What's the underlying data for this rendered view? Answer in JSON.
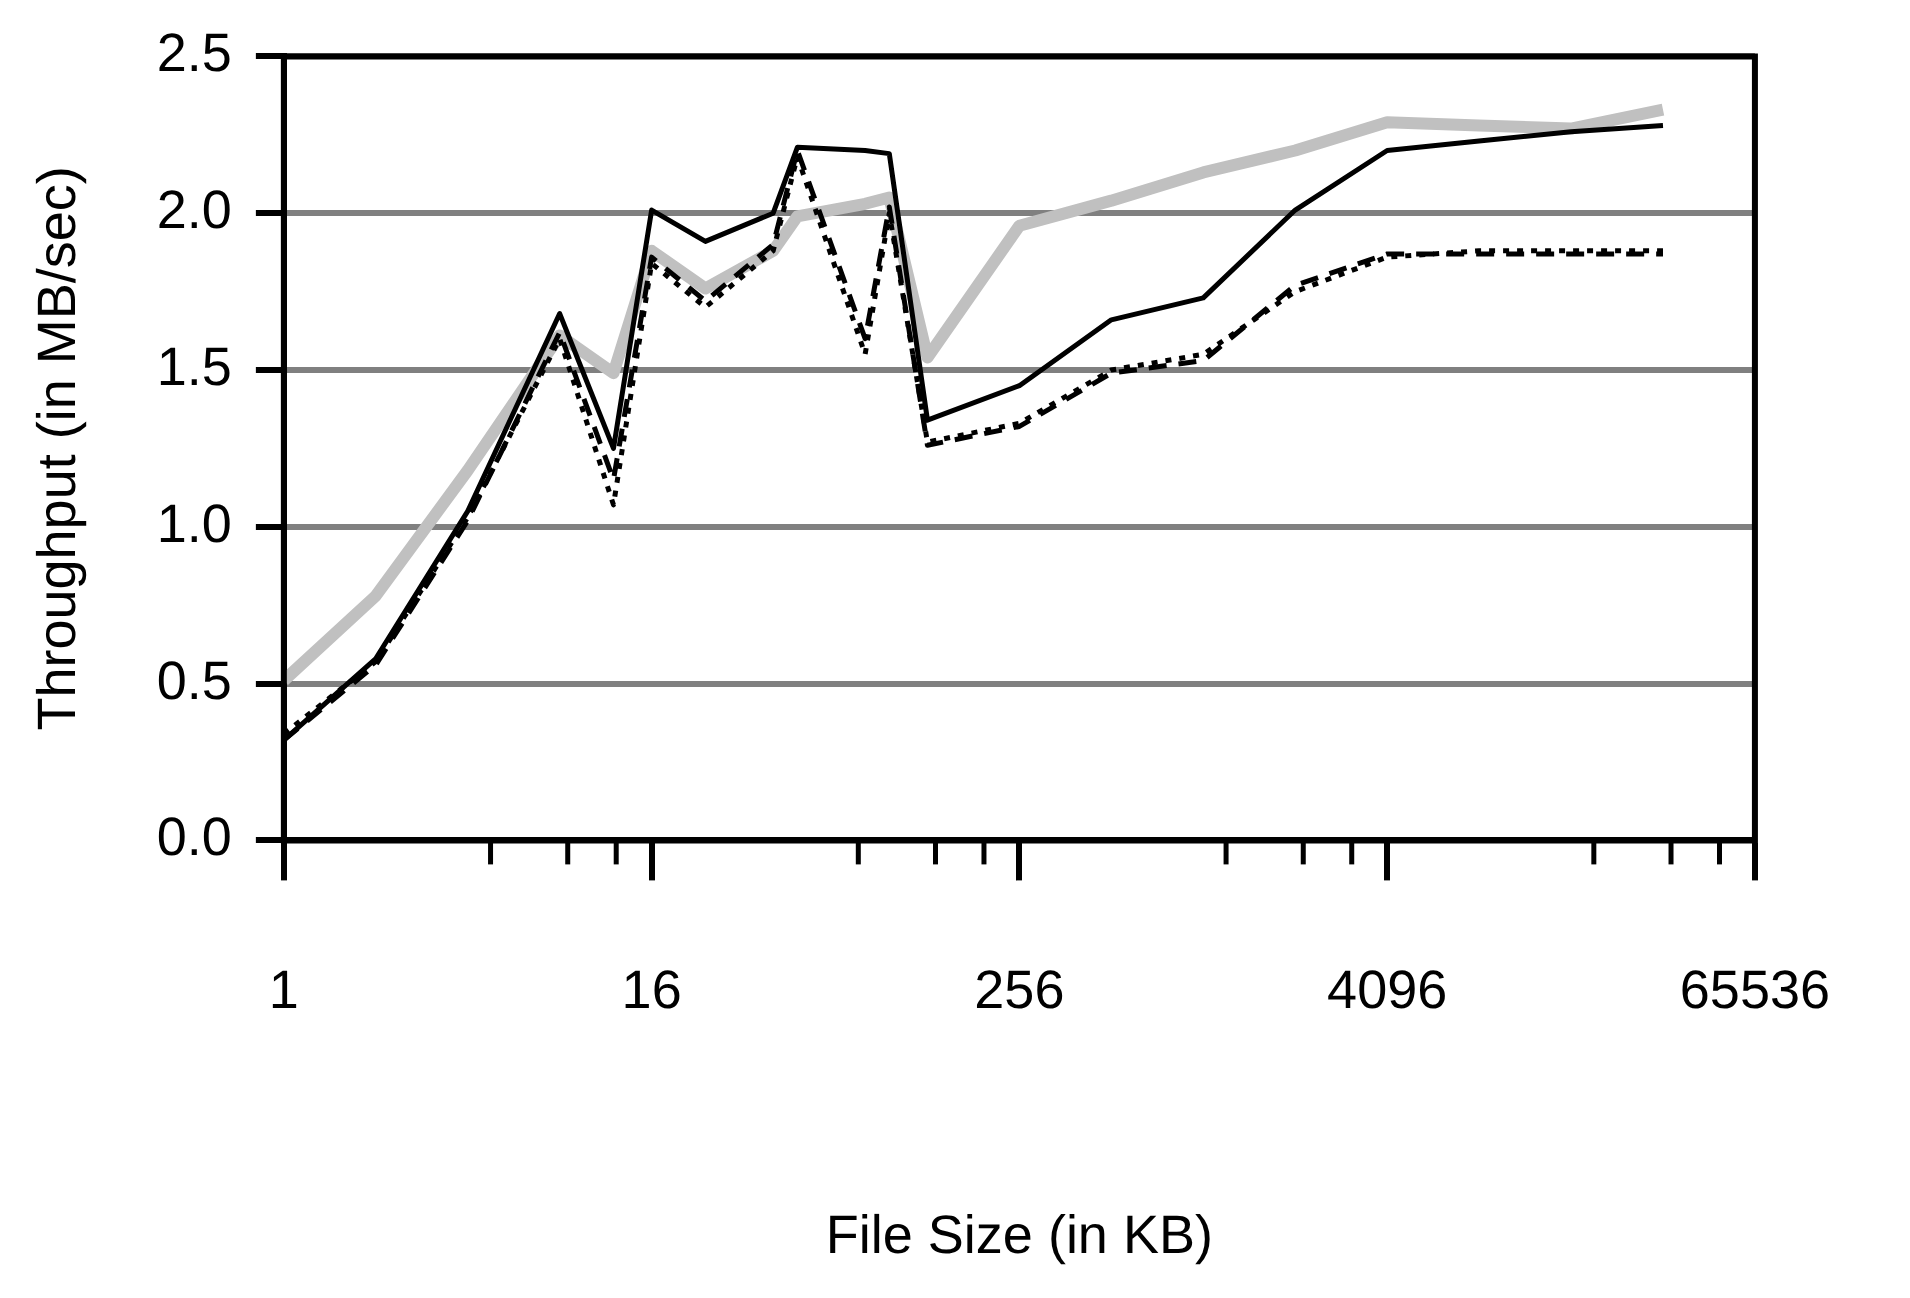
{
  "chart_data": {
    "type": "line",
    "xlabel": "File Size (in KB)",
    "ylabel": "Throughput (in MB/sec)",
    "log": "x",
    "grid": "y",
    "legend": false,
    "marker": "none",
    "x": [
      1,
      2,
      4,
      8,
      12,
      16,
      24,
      40,
      48,
      80,
      96,
      128,
      256,
      512,
      1024,
      2048,
      4096,
      8192,
      16384,
      32768
    ],
    "xlim": [
      1,
      65536
    ],
    "xticks": [
      1,
      {
        "value": 4.75,
        "label": null
      },
      {
        "value": 8.5,
        "label": null
      },
      {
        "value": 12.25,
        "label": null
      },
      16,
      {
        "value": 76,
        "label": null
      },
      {
        "value": 136,
        "label": null
      },
      {
        "value": 196,
        "label": null
      },
      256,
      {
        "value": 1216,
        "label": null
      },
      {
        "value": 2176,
        "label": null
      },
      {
        "value": 3136,
        "label": null
      },
      4096,
      {
        "value": 19456,
        "label": null
      },
      {
        "value": 34816,
        "label": null
      },
      {
        "value": 50176,
        "label": null
      },
      65536
    ],
    "ylim": [
      0,
      2.5
    ],
    "yticks": [
      {
        "value": 0,
        "label": "0.0"
      },
      {
        "value": 0.5,
        "label": "0.5"
      },
      {
        "value": 1,
        "label": "1.0"
      },
      {
        "value": 1.5,
        "label": "1.5"
      },
      {
        "value": 2,
        "label": "2.0"
      },
      {
        "value": 2.5,
        "label": "2.5"
      }
    ],
    "series": [
      {
        "color": "#000000",
        "line_style": "dashed",
        "values": [
          0.32,
          0.56,
          1.02,
          1.62,
          1.15,
          1.86,
          1.72,
          1.9,
          2.2,
          1.6,
          2.02,
          1.26,
          1.32,
          1.49,
          1.53,
          1.77,
          1.87,
          1.87,
          1.87,
          1.87
        ]
      },
      {
        "color": "#000000",
        "line_style": "dotted",
        "values": [
          0.34,
          0.57,
          1.03,
          1.6,
          1.07,
          1.84,
          1.7,
          1.88,
          2.18,
          1.55,
          2.0,
          1.27,
          1.33,
          1.5,
          1.55,
          1.75,
          1.86,
          1.88,
          1.88,
          1.88
        ]
      },
      {
        "color": "#000000",
        "line_style": "solid",
        "values": [
          0.32,
          0.58,
          1.05,
          1.68,
          1.25,
          2.01,
          1.91,
          2.0,
          2.21,
          2.2,
          2.19,
          1.34,
          1.45,
          1.66,
          1.73,
          2.01,
          2.2,
          2.23,
          2.26,
          2.28
        ]
      },
      {
        "color": "#c0c0c0",
        "line_style": "solid",
        "values": [
          0.51,
          0.78,
          1.18,
          1.61,
          1.49,
          1.88,
          1.76,
          1.88,
          1.99,
          2.03,
          2.05,
          1.54,
          1.96,
          2.04,
          2.13,
          2.2,
          2.29,
          2.28,
          2.27,
          2.33
        ]
      }
    ]
  }
}
